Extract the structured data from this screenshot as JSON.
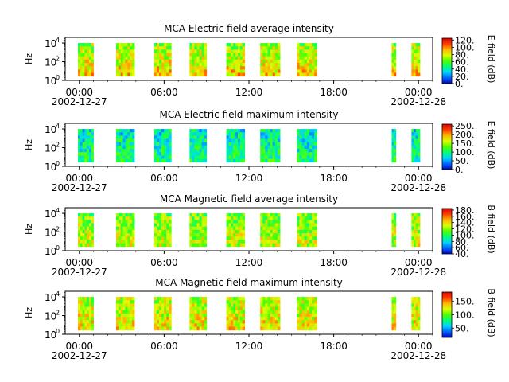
{
  "chart_data": [
    {
      "type": "heatmap",
      "title": "MCA  Electric field average intensity",
      "ylabel": "Hz",
      "colorbar_label": "E field (dB)",
      "colorbar_ticks": [
        "0.",
        "20.",
        "40.",
        "60.",
        "80.",
        "100.",
        "120."
      ],
      "colorbar_range": [
        0,
        125
      ],
      "y_scale": "log",
      "y_ticks": [
        {
          "base": "10",
          "exp": "0"
        },
        {
          "base": "10",
          "exp": "2"
        },
        {
          "base": "10",
          "exp": "4"
        }
      ],
      "x_ticks": [
        "00:00",
        "06:00",
        "12:00",
        "18:00",
        "00:00"
      ],
      "x_date_start": "2002-12-27",
      "x_date_end": "2002-12-28",
      "x_range_hours": [
        -1,
        25
      ],
      "level": 55
    },
    {
      "type": "heatmap",
      "title": "MCA  Electric field maximum intensity",
      "ylabel": "Hz",
      "colorbar_label": "E field (dB)",
      "colorbar_ticks": [
        "0.",
        "50.",
        "100.",
        "150.",
        "200.",
        "250."
      ],
      "colorbar_range": [
        0,
        260
      ],
      "y_scale": "log",
      "y_ticks": [
        {
          "base": "10",
          "exp": "0"
        },
        {
          "base": "10",
          "exp": "2"
        },
        {
          "base": "10",
          "exp": "4"
        }
      ],
      "x_ticks": [
        "00:00",
        "06:00",
        "12:00",
        "18:00",
        "00:00"
      ],
      "x_date_start": "2002-12-27",
      "x_date_end": "2002-12-28",
      "x_range_hours": [
        -1,
        25
      ],
      "level": 35
    },
    {
      "type": "heatmap",
      "title": "MCA  Magnetic field average intensity",
      "ylabel": "Hz",
      "colorbar_label": "B field (dB)",
      "colorbar_ticks": [
        "40.",
        "60.",
        "80.",
        "100.",
        "120.",
        "140.",
        "160.",
        "180."
      ],
      "colorbar_range": [
        40,
        185
      ],
      "y_scale": "log",
      "y_ticks": [
        {
          "base": "10",
          "exp": "0"
        },
        {
          "base": "10",
          "exp": "2"
        },
        {
          "base": "10",
          "exp": "4"
        }
      ],
      "x_ticks": [
        "00:00",
        "06:00",
        "12:00",
        "18:00",
        "00:00"
      ],
      "x_date_start": "2002-12-27",
      "x_date_end": "2002-12-28",
      "x_range_hours": [
        -1,
        25
      ],
      "level": 52
    },
    {
      "type": "heatmap",
      "title": "MCA  Magnetic field maximum intensity",
      "ylabel": "Hz",
      "colorbar_label": "B field (dB)",
      "colorbar_ticks": [
        "50.",
        "100.",
        "150."
      ],
      "colorbar_range": [
        15,
        185
      ],
      "y_scale": "log",
      "y_ticks": [
        {
          "base": "10",
          "exp": "0"
        },
        {
          "base": "10",
          "exp": "2"
        },
        {
          "base": "10",
          "exp": "4"
        }
      ],
      "x_ticks": [
        "00:00",
        "06:00",
        "12:00",
        "18:00",
        "00:00"
      ],
      "x_date_start": "2002-12-27",
      "x_date_end": "2002-12-28",
      "x_range_hours": [
        -1,
        25
      ],
      "level": 58
    }
  ],
  "data_intervals_hours": [
    [
      -0.1,
      1.0
    ],
    [
      2.6,
      3.9
    ],
    [
      5.3,
      6.5
    ],
    [
      7.8,
      9.0
    ],
    [
      10.4,
      11.7
    ],
    [
      12.8,
      14.2
    ],
    [
      15.4,
      16.8
    ],
    [
      22.1,
      22.4
    ],
    [
      23.5,
      24.1
    ]
  ],
  "colors": {
    "colormap": [
      "#0000c8",
      "#0064ff",
      "#00d2ff",
      "#00ff78",
      "#50ff00",
      "#dcff00",
      "#ffb400",
      "#ff3c00",
      "#dc0000"
    ],
    "axes": "#000000",
    "background": "#ffffff"
  }
}
